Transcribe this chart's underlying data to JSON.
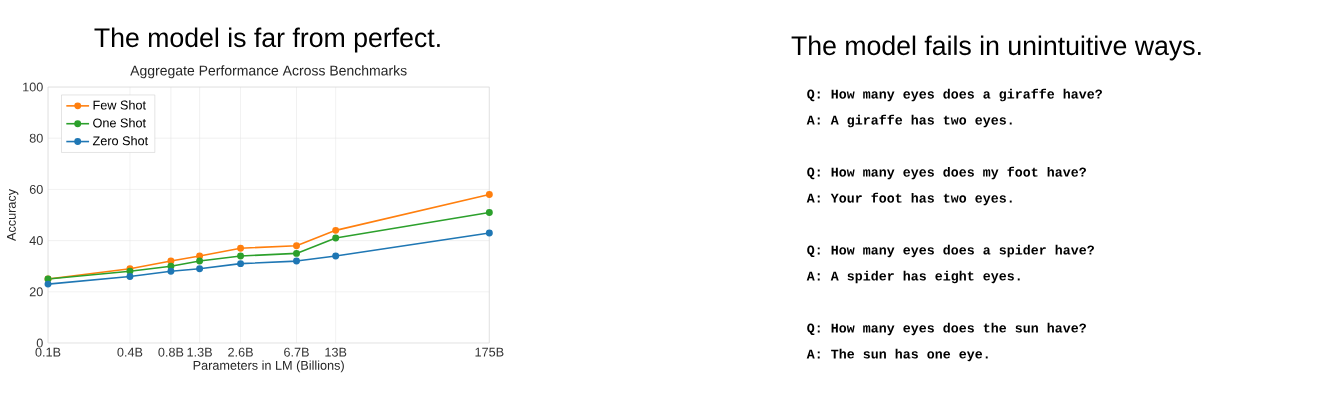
{
  "chart_data": [
    {
      "type": "line",
      "title": "The model is far from perfect.",
      "subtitle": "Aggregate Performance Across Benchmarks",
      "xlabel": "Parameters in LM (Billions)",
      "ylabel": "Accuracy",
      "x": [
        0.1,
        0.4,
        0.8,
        1.3,
        2.6,
        6.7,
        13,
        175
      ],
      "log": "x",
      "xlim": [
        0.1,
        175
      ],
      "ylim": [
        0,
        100
      ],
      "xticks": [
        {
          "value": 0.1,
          "label": "0.1B"
        },
        {
          "value": 0.4,
          "label": "0.4B"
        },
        {
          "value": 0.8,
          "label": "0.8B"
        },
        {
          "value": 1.3,
          "label": "1.3B"
        },
        {
          "value": 2.6,
          "label": "2.6B"
        },
        {
          "value": 6.7,
          "label": "6.7B"
        },
        {
          "value": 13,
          "label": "13B"
        },
        {
          "value": 175,
          "label": "175B"
        }
      ],
      "yticks": [
        0,
        20,
        40,
        60,
        80,
        100
      ],
      "grid": true,
      "legend": "top left",
      "marker": "circle",
      "line_style": "solid",
      "series": [
        {
          "name": "Few Shot",
          "color": "#ff7f0e",
          "values": [
            25,
            29,
            32,
            34,
            37,
            38,
            44,
            58
          ]
        },
        {
          "name": "One Shot",
          "color": "#2ca02c",
          "values": [
            25,
            28,
            30,
            32,
            34,
            35,
            41,
            51
          ]
        },
        {
          "name": "Zero Shot",
          "color": "#1f77b4",
          "values": [
            23,
            26,
            28,
            29,
            31,
            32,
            34,
            43
          ]
        }
      ]
    },
    {
      "type": "other",
      "title": "The model fails in unintuitive ways.",
      "annotations": [
        "Q: How many eyes does a giraffe have?",
        "A: A giraffe has two eyes.",
        "Q: How many eyes does my foot have?",
        "A: Your foot has two eyes.",
        "Q: How many eyes does a spider have?",
        "A: A spider has eight eyes.",
        "Q: How many eyes does the sun have?",
        "A: The sun has one eye."
      ]
    }
  ]
}
